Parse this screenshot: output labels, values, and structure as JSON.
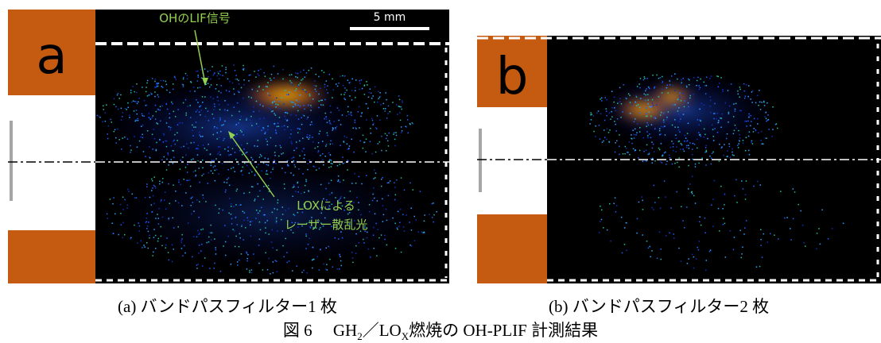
{
  "panel_a": {
    "label": "a",
    "annotation_oh": "OHのLIF信号",
    "scale_bar": "5 mm",
    "annotation_lox": [
      "LOXによる",
      "レーザー散乱光"
    ],
    "caption": "(a) バンドパスフィルター1 枚"
  },
  "panel_b": {
    "label": "b",
    "caption": "(b) バンドパスフィルター2 枚"
  },
  "figure_caption": {
    "parts": [
      "図 6　 GH",
      "2",
      "／LO",
      "X",
      "燃焼の OH-PLIF 計測結果"
    ]
  }
}
